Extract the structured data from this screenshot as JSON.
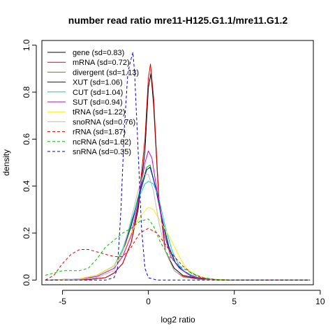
{
  "chart_data": {
    "type": "line",
    "title": "number read ratio mre11-H125.G1.1/mre11.G1.2",
    "xlabel": "log2 ratio",
    "ylabel": "density",
    "xlim": [
      -6.2,
      9.6
    ],
    "ylim": [
      -0.02,
      1.02
    ],
    "xticks": [
      -5,
      0,
      5,
      10
    ],
    "yticks": [
      0.0,
      0.2,
      0.4,
      0.6,
      0.8,
      1.0
    ],
    "xtick_labels": [
      "-5",
      "0",
      "5",
      "10"
    ],
    "ytick_labels": [
      "0.0",
      "0.2",
      "0.4",
      "0.6",
      "0.8",
      "1.0"
    ],
    "grid": false,
    "legend_position": "top-left",
    "series": [
      {
        "name": "gene (sd=0.83)",
        "color": "#000000",
        "dash": "solid",
        "points": [
          [
            -6,
            0
          ],
          [
            -3.5,
            0.002
          ],
          [
            -2.5,
            0.01
          ],
          [
            -2,
            0.03
          ],
          [
            -1.5,
            0.07
          ],
          [
            -1,
            0.16
          ],
          [
            -0.6,
            0.3
          ],
          [
            -0.2,
            0.55
          ],
          [
            0,
            0.82
          ],
          [
            0.15,
            0.88
          ],
          [
            0.3,
            0.75
          ],
          [
            0.6,
            0.35
          ],
          [
            1,
            0.12
          ],
          [
            1.5,
            0.05
          ],
          [
            2,
            0.02
          ],
          [
            3,
            0.004
          ],
          [
            4,
            0.001
          ],
          [
            5,
            0
          ],
          [
            9.4,
            0
          ]
        ]
      },
      {
        "name": "mRNA (sd=0.72)",
        "color": "#dd0000",
        "dash": "solid",
        "points": [
          [
            -6,
            0
          ],
          [
            -3.5,
            0.002
          ],
          [
            -2.5,
            0.01
          ],
          [
            -2,
            0.03
          ],
          [
            -1.5,
            0.07
          ],
          [
            -1,
            0.16
          ],
          [
            -0.6,
            0.32
          ],
          [
            -0.2,
            0.6
          ],
          [
            0,
            0.86
          ],
          [
            0.12,
            0.92
          ],
          [
            0.3,
            0.78
          ],
          [
            0.6,
            0.36
          ],
          [
            1,
            0.12
          ],
          [
            1.5,
            0.04
          ],
          [
            2,
            0.015
          ],
          [
            3,
            0.003
          ],
          [
            4,
            0
          ],
          [
            9.4,
            0
          ]
        ]
      },
      {
        "name": "divergent (sd=1.13)",
        "color": "#00bb00",
        "dash": "solid",
        "points": [
          [
            -6,
            0
          ],
          [
            -4,
            0.005
          ],
          [
            -3,
            0.02
          ],
          [
            -2,
            0.06
          ],
          [
            -1.5,
            0.13
          ],
          [
            -1,
            0.24
          ],
          [
            -0.5,
            0.38
          ],
          [
            -0.1,
            0.48
          ],
          [
            0.1,
            0.49
          ],
          [
            0.4,
            0.4
          ],
          [
            0.8,
            0.25
          ],
          [
            1.2,
            0.13
          ],
          [
            1.6,
            0.07
          ],
          [
            2,
            0.04
          ],
          [
            2.5,
            0.02
          ],
          [
            3,
            0.008
          ],
          [
            4,
            0.002
          ],
          [
            5,
            0
          ],
          [
            9.4,
            0
          ]
        ]
      },
      {
        "name": "XUT (sd=1.06)",
        "color": "#0000cc",
        "dash": "solid",
        "points": [
          [
            -6,
            0
          ],
          [
            -4,
            0.005
          ],
          [
            -3,
            0.02
          ],
          [
            -2,
            0.06
          ],
          [
            -1.5,
            0.12
          ],
          [
            -1,
            0.23
          ],
          [
            -0.5,
            0.37
          ],
          [
            -0.1,
            0.47
          ],
          [
            0.1,
            0.48
          ],
          [
            0.4,
            0.4
          ],
          [
            0.8,
            0.26
          ],
          [
            1.2,
            0.14
          ],
          [
            1.6,
            0.07
          ],
          [
            2,
            0.04
          ],
          [
            2.5,
            0.02
          ],
          [
            3,
            0.008
          ],
          [
            4,
            0.002
          ],
          [
            5,
            0
          ],
          [
            9.4,
            0
          ]
        ]
      },
      {
        "name": "CUT (sd=1.04)",
        "color": "#00cccc",
        "dash": "solid",
        "points": [
          [
            -6,
            0
          ],
          [
            -4,
            0.004
          ],
          [
            -3,
            0.02
          ],
          [
            -2,
            0.06
          ],
          [
            -1.5,
            0.13
          ],
          [
            -1,
            0.25
          ],
          [
            -0.5,
            0.36
          ],
          [
            -0.2,
            0.41
          ],
          [
            0,
            0.42
          ],
          [
            0.3,
            0.41
          ],
          [
            0.6,
            0.35
          ],
          [
            1,
            0.22
          ],
          [
            1.4,
            0.12
          ],
          [
            1.8,
            0.06
          ],
          [
            2.2,
            0.03
          ],
          [
            3,
            0.008
          ],
          [
            4,
            0.002
          ],
          [
            5,
            0
          ],
          [
            9.4,
            0
          ]
        ]
      },
      {
        "name": "SUT (sd=0.94)",
        "color": "#cc00cc",
        "dash": "solid",
        "points": [
          [
            -6,
            0
          ],
          [
            -4,
            0.004
          ],
          [
            -3,
            0.015
          ],
          [
            -2,
            0.05
          ],
          [
            -1.5,
            0.1
          ],
          [
            -1,
            0.19
          ],
          [
            -0.6,
            0.33
          ],
          [
            -0.2,
            0.5
          ],
          [
            0,
            0.55
          ],
          [
            0.2,
            0.52
          ],
          [
            0.5,
            0.38
          ],
          [
            0.9,
            0.2
          ],
          [
            1.3,
            0.1
          ],
          [
            1.8,
            0.05
          ],
          [
            2.5,
            0.015
          ],
          [
            3.5,
            0.003
          ],
          [
            5,
            0
          ],
          [
            9.4,
            0
          ]
        ]
      },
      {
        "name": "tRNA (sd=1.22)",
        "color": "#ffee00",
        "dash": "solid",
        "points": [
          [
            -6,
            0
          ],
          [
            -4,
            0.005
          ],
          [
            -3,
            0.02
          ],
          [
            -2,
            0.06
          ],
          [
            -1.5,
            0.12
          ],
          [
            -1,
            0.2
          ],
          [
            -0.5,
            0.27
          ],
          [
            0,
            0.31
          ],
          [
            0.3,
            0.3
          ],
          [
            0.7,
            0.25
          ],
          [
            1.1,
            0.2
          ],
          [
            1.4,
            0.16
          ],
          [
            1.8,
            0.1
          ],
          [
            2.2,
            0.05
          ],
          [
            2.8,
            0.02
          ],
          [
            3.5,
            0.005
          ],
          [
            5,
            0
          ],
          [
            9.4,
            0
          ]
        ]
      },
      {
        "name": "snoRNA (sd=0.76)",
        "color": "#bbbbbb",
        "dash": "solid",
        "points": [
          [
            -6,
            0
          ],
          [
            -4,
            0.003
          ],
          [
            -3,
            0.01
          ],
          [
            -2,
            0.04
          ],
          [
            -1.5,
            0.12
          ],
          [
            -1,
            0.26
          ],
          [
            -0.6,
            0.38
          ],
          [
            -0.3,
            0.45
          ],
          [
            0,
            0.45
          ],
          [
            0.3,
            0.38
          ],
          [
            0.6,
            0.25
          ],
          [
            1,
            0.12
          ],
          [
            1.5,
            0.04
          ],
          [
            2,
            0.012
          ],
          [
            3,
            0.002
          ],
          [
            4,
            0
          ],
          [
            9.4,
            0
          ]
        ]
      },
      {
        "name": "rRNA (sd=1.87)",
        "color": "#dd0000",
        "dash": "dashed",
        "points": [
          [
            -6,
            0
          ],
          [
            -5.5,
            0.02
          ],
          [
            -5,
            0.07
          ],
          [
            -4.5,
            0.11
          ],
          [
            -4,
            0.13
          ],
          [
            -3.5,
            0.13
          ],
          [
            -3,
            0.12
          ],
          [
            -2.5,
            0.11
          ],
          [
            -2,
            0.1
          ],
          [
            -1.5,
            0.1
          ],
          [
            -1,
            0.14
          ],
          [
            -0.5,
            0.2
          ],
          [
            0,
            0.22
          ],
          [
            0.5,
            0.2
          ],
          [
            1,
            0.15
          ],
          [
            1.5,
            0.1
          ],
          [
            2,
            0.06
          ],
          [
            2.5,
            0.03
          ],
          [
            3,
            0.012
          ],
          [
            3.5,
            0.004
          ],
          [
            4,
            0.001
          ],
          [
            5,
            0
          ],
          [
            9.4,
            0
          ]
        ]
      },
      {
        "name": "ncRNA (sd=1.62)",
        "color": "#00bb00",
        "dash": "dashed",
        "points": [
          [
            -6,
            0.02
          ],
          [
            -5.5,
            0.03
          ],
          [
            -5,
            0.04
          ],
          [
            -4.5,
            0.04
          ],
          [
            -4,
            0.04
          ],
          [
            -3.5,
            0.05
          ],
          [
            -3,
            0.09
          ],
          [
            -2.5,
            0.14
          ],
          [
            -2,
            0.17
          ],
          [
            -1.5,
            0.2
          ],
          [
            -1,
            0.22
          ],
          [
            -0.5,
            0.25
          ],
          [
            0,
            0.26
          ],
          [
            0.3,
            0.23
          ],
          [
            0.7,
            0.16
          ],
          [
            1.2,
            0.1
          ],
          [
            1.8,
            0.06
          ],
          [
            2.5,
            0.03
          ],
          [
            3.2,
            0.01
          ],
          [
            4,
            0.002
          ],
          [
            5,
            0
          ],
          [
            9.4,
            0
          ]
        ]
      },
      {
        "name": "snRNA (sd=0.35)",
        "color": "#0000cc",
        "dash": "dashed",
        "points": [
          [
            -6,
            0
          ],
          [
            -2.5,
            0
          ],
          [
            -2,
            0.01
          ],
          [
            -1.8,
            0.05
          ],
          [
            -1.6,
            0.3
          ],
          [
            -1.4,
            0.65
          ],
          [
            -1.2,
            0.88
          ],
          [
            -1.05,
            0.93
          ],
          [
            -0.9,
            0.97
          ],
          [
            -0.8,
            0.88
          ],
          [
            -0.6,
            0.55
          ],
          [
            -0.4,
            0.22
          ],
          [
            -0.2,
            0.05
          ],
          [
            0,
            0.01
          ],
          [
            0.5,
            0
          ],
          [
            9.4,
            0
          ]
        ]
      }
    ]
  }
}
